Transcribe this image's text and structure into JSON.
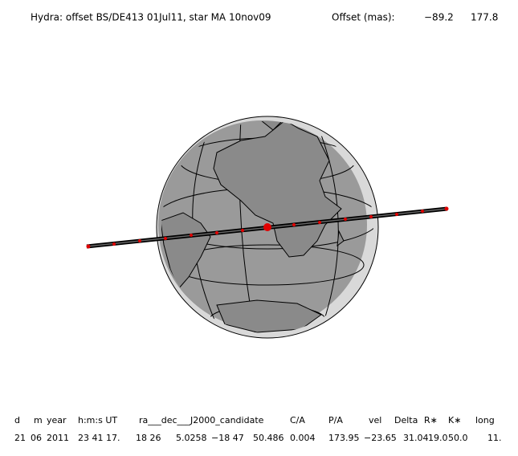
{
  "header": {
    "title": "Hydra: offset BS/DE413 01Jul11, star MA 10nov09",
    "offset_label": "Offset (mas):",
    "offset_values": [
      "−89.2",
      "177.8"
    ]
  },
  "table": {
    "columns": [
      "d",
      "m",
      "year",
      "h:m:s UT",
      "ra___dec___J2000_candidate",
      "C/A",
      "P/A",
      "vel",
      "Delta",
      "R∗",
      "K∗",
      "long"
    ],
    "values": [
      "21",
      "06",
      "2011",
      "23 41 17.",
      "18 26",
      "5.0258",
      "−18 47",
      "50.486",
      "0.004",
      "173.95",
      "−23.65",
      "31.04",
      "19.0",
      "50.0",
      "11."
    ]
  }
}
